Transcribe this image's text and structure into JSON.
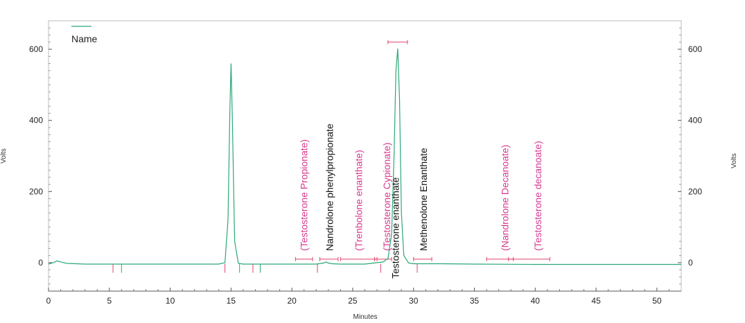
{
  "chart_data": {
    "type": "line",
    "xlabel": "Minutes",
    "ylabel_left": "Volts",
    "ylabel_right": "Volts",
    "xlim": [
      0,
      52
    ],
    "ylim": [
      -80,
      680
    ],
    "x_ticks": [
      0,
      5,
      10,
      15,
      20,
      25,
      30,
      35,
      40,
      45,
      50
    ],
    "y_ticks": [
      0,
      200,
      400,
      600
    ],
    "grid": false,
    "legend_position": "top-left",
    "colors": {
      "trace": "#2aa876",
      "label_expected": "#d63b8f",
      "label_found": "#111111",
      "window": "#e0406a"
    },
    "series": [
      {
        "name": "Name",
        "x": [
          0,
          0.4,
          0.7,
          1.0,
          1.5,
          3,
          5,
          6,
          8,
          10,
          12,
          13,
          14,
          14.5,
          14.75,
          14.9,
          15.0,
          15.1,
          15.3,
          15.6,
          16,
          18,
          20,
          22,
          22.6,
          22.8,
          23.0,
          23.3,
          24,
          26,
          27.5,
          27.9,
          28.2,
          28.4,
          28.55,
          28.7,
          28.85,
          29.0,
          29.2,
          29.6,
          30,
          32,
          35,
          40,
          45,
          50,
          52
        ],
        "y": [
          -4,
          0,
          5,
          2,
          -2,
          -4,
          -4,
          -4,
          -4,
          -4,
          -4,
          -4,
          -4,
          0,
          120,
          420,
          560,
          420,
          60,
          -2,
          -4,
          -4,
          -4,
          -4,
          -1,
          2,
          -1,
          -3,
          -4,
          -4,
          2,
          12,
          80,
          300,
          540,
          602,
          460,
          140,
          20,
          -1,
          -3,
          -3,
          -4,
          -5,
          -5,
          -5,
          -5
        ]
      }
    ],
    "legend": [
      "Name"
    ],
    "peak_labels": [
      {
        "text": "(Testosterone Propionate)",
        "x": 21.0,
        "kind": "expected"
      },
      {
        "text": "Nandrolone phenylpropionate",
        "x": 23.1,
        "kind": "found"
      },
      {
        "text": "(Trenbolone enanthate)",
        "x": 25.5,
        "kind": "expected"
      },
      {
        "text": "(Testosterone Cypionate)",
        "x": 27.8,
        "kind": "expected"
      },
      {
        "text": "Testosterone enanthate",
        "x": 28.5,
        "kind": "found"
      },
      {
        "text": "Methenolone Enanthate",
        "x": 30.8,
        "kind": "found"
      },
      {
        "text": "(Nandrolone Decanoate)",
        "x": 37.5,
        "kind": "expected"
      },
      {
        "text": "(Testosterone decanoate)",
        "x": 40.2,
        "kind": "expected"
      }
    ],
    "retention_windows": [
      {
        "x1": 20.3,
        "x2": 21.7,
        "y": 10
      },
      {
        "x1": 22.3,
        "x2": 23.8,
        "y": 10
      },
      {
        "x1": 24.0,
        "x2": 27.0,
        "y": 10
      },
      {
        "x1": 26.8,
        "x2": 28.2,
        "y": 10
      },
      {
        "x1": 27.9,
        "x2": 29.5,
        "y": 620
      },
      {
        "x1": 30.0,
        "x2": 31.5,
        "y": 10
      },
      {
        "x1": 36.0,
        "x2": 38.2,
        "y": 10
      },
      {
        "x1": 37.8,
        "x2": 41.2,
        "y": 10
      }
    ],
    "event_markers": [
      {
        "x": 5.3,
        "color": "#e0406a"
      },
      {
        "x": 6.0,
        "color": "#2aa876"
      },
      {
        "x": 14.5,
        "color": "#e0406a"
      },
      {
        "x": 15.7,
        "color": "#2aa876"
      },
      {
        "x": 16.8,
        "color": "#e0406a"
      },
      {
        "x": 17.4,
        "color": "#2aa876"
      },
      {
        "x": 22.1,
        "color": "#e0406a"
      },
      {
        "x": 27.3,
        "color": "#e0406a"
      },
      {
        "x": 30.3,
        "color": "#e0406a"
      }
    ]
  }
}
